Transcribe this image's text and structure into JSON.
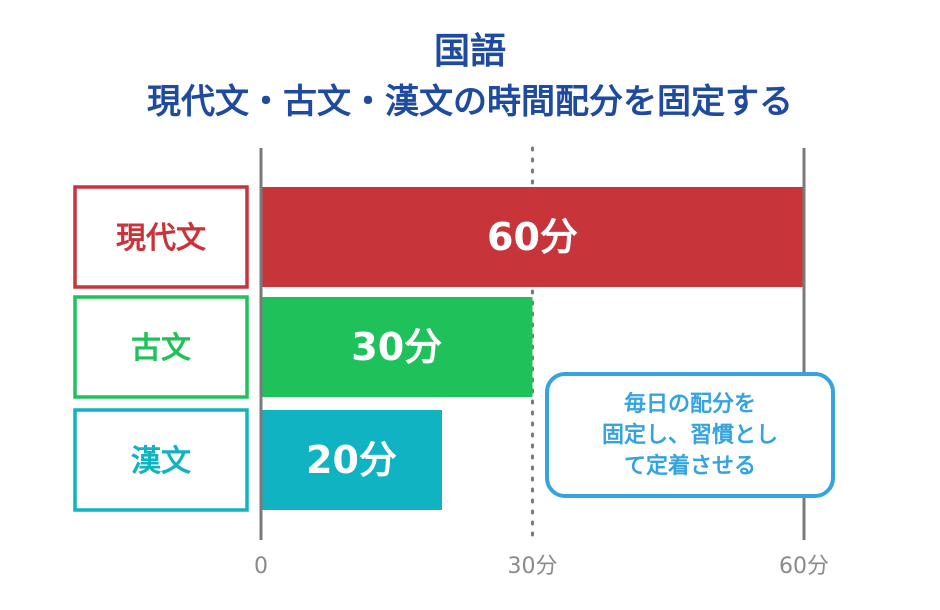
{
  "title": {
    "line1": "国語",
    "line2": "現代文・古文・漢文の時間配分を固定する"
  },
  "chart_data": {
    "type": "bar",
    "orientation": "horizontal",
    "categories": [
      "現代文",
      "古文",
      "漢文"
    ],
    "values": [
      60,
      30,
      20
    ],
    "value_labels": [
      "60分",
      "30分",
      "20分"
    ],
    "colors": [
      "#c7353a",
      "#1fc25a",
      "#10b3c1"
    ],
    "xlim": [
      0,
      60
    ],
    "xticks": [
      {
        "value": 0,
        "label": "0"
      },
      {
        "value": 30,
        "label": "30分"
      },
      {
        "value": 60,
        "label": "60分"
      }
    ],
    "reference_line": 30,
    "grid_color": "#7a7a7a"
  },
  "note": {
    "lines": [
      "毎日の配分を",
      "固定し、習慣とし",
      "て定着させる"
    ],
    "color": "#35a3df"
  }
}
